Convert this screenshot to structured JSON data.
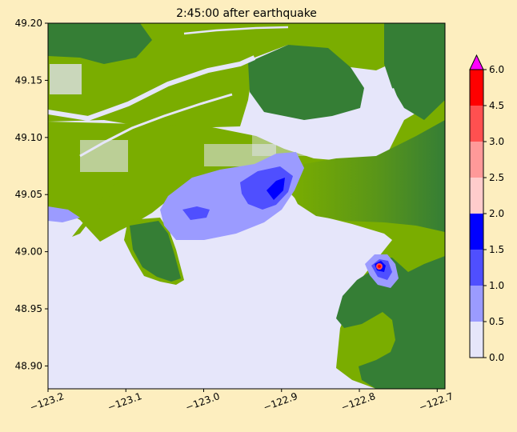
{
  "chart_data": {
    "type": "heatmap",
    "title": "2:45:00 after earthquake",
    "xlabel": "",
    "ylabel": "",
    "xlim": [
      -123.2,
      -122.69
    ],
    "ylim": [
      48.88,
      49.2
    ],
    "x_ticks": [
      -123.2,
      -123.1,
      -123.0,
      -122.9,
      -122.8,
      -122.7
    ],
    "x_tick_labels": [
      "−123.2",
      "−123.1",
      "−123.0",
      "−122.9",
      "−122.8",
      "−122.7"
    ],
    "y_ticks": [
      48.9,
      48.95,
      49.0,
      49.05,
      49.1,
      49.15,
      49.2
    ],
    "y_tick_labels": [
      "48.90",
      "48.95",
      "49.00",
      "49.05",
      "49.10",
      "49.15",
      "49.20"
    ],
    "grid": false,
    "colorbar": {
      "levels": [
        0.0,
        0.5,
        1.0,
        1.5,
        2.0,
        2.5,
        3.0,
        4.5,
        6.0
      ],
      "tick_labels": [
        "0.0",
        "0.5",
        "1.0",
        "1.5",
        "2.0",
        "2.5",
        "3.0",
        "4.5",
        "6.0"
      ],
      "colors": [
        "#e6e6fa",
        "#9b9bff",
        "#4f4fff",
        "#0000ff",
        "#ffcccc",
        "#ff9999",
        "#ff5050",
        "#ff0000"
      ],
      "extend_max_color": "#ff00ff"
    },
    "land_colors": {
      "lowland": "#7aad00",
      "highland": "#357e35",
      "water": "#e6e6fa"
    }
  }
}
